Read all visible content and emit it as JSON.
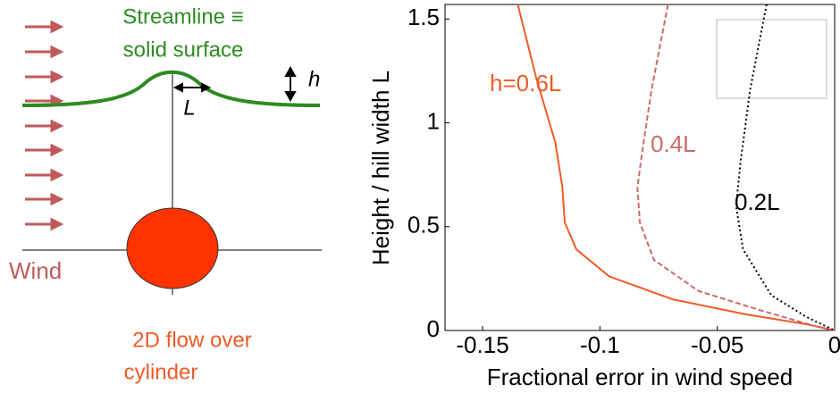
{
  "diagram": {
    "streamline_line1": "Streamline ≡",
    "streamline_line2": "solid surface",
    "h_label": "h",
    "L_label": "L",
    "wind_label": "Wind",
    "cylinder_line1": "2D flow over",
    "cylinder_line2": "cylinder"
  },
  "chart_data": {
    "type": "line",
    "xlabel": "Fractional error in wind speed",
    "ylabel": "Height / hill width L",
    "xlim": [
      -0.166,
      0
    ],
    "ylim": [
      0,
      1.57
    ],
    "xticks": [
      -0.15,
      -0.1,
      -0.05,
      0
    ],
    "yticks": [
      0,
      0.5,
      1,
      1.5
    ],
    "series": [
      {
        "name": "h=0.6L",
        "color": "#f05a28",
        "dash": "none",
        "x": [
          -0.135,
          -0.127,
          -0.119,
          -0.116,
          -0.115,
          -0.11,
          -0.096,
          -0.069,
          -0.038,
          -0.012,
          0
        ],
        "values": [
          1.57,
          1.21,
          0.905,
          0.69,
          0.52,
          0.39,
          0.26,
          0.15,
          0.078,
          0.03,
          0
        ]
      },
      {
        "name": "0.4L",
        "color": "#c96a6a",
        "dash": "6 3",
        "x": [
          -0.071,
          -0.078,
          -0.082,
          -0.084,
          -0.083,
          -0.077,
          -0.058,
          -0.031,
          -0.008,
          0
        ],
        "values": [
          1.57,
          1.16,
          0.86,
          0.69,
          0.52,
          0.34,
          0.19,
          0.095,
          0.02,
          0
        ]
      },
      {
        "name": "0.2L",
        "color": "#000000",
        "dash": "2 3",
        "x": [
          -0.029,
          -0.036,
          -0.04,
          -0.042,
          -0.039,
          -0.027,
          -0.012,
          0
        ],
        "values": [
          1.57,
          1.16,
          0.82,
          0.6,
          0.39,
          0.17,
          0.065,
          0
        ]
      }
    ]
  }
}
